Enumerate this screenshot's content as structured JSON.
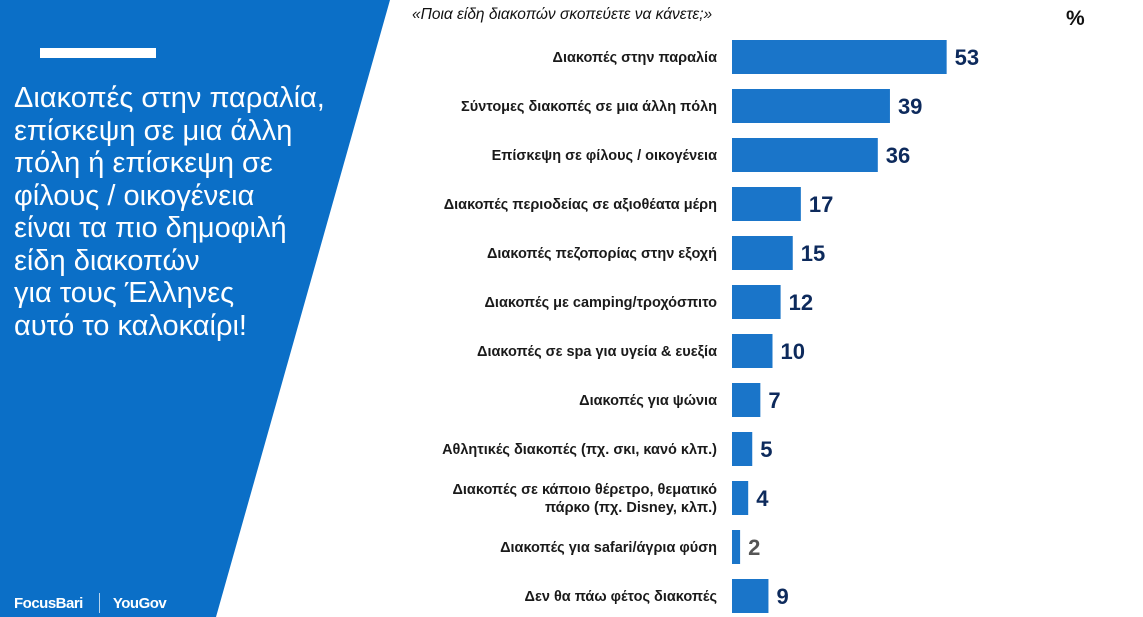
{
  "colors": {
    "panel": "#0b6fc7",
    "bar": "#1a75c9",
    "value_text": "#0d2a5c",
    "small_value_text": "#555555"
  },
  "headline": "Διακοπές στην παραλία,\nεπίσκεψη σε μια άλλη\nπόλη ή επίσκεψη σε\nφίλους / οικογένεια\nείναι τα πιο δημοφιλή\nείδη διακοπών\nγια τους Έλληνες\nαυτό το καλοκαίρι!",
  "logos": {
    "focusbari": "FocusBari",
    "yougov": "YouGov"
  },
  "chart_data": {
    "type": "bar",
    "orientation": "horizontal",
    "title": "«Ποια είδη διακοπών σκοπεύετε να κάνετε;»",
    "unit": "%",
    "categories": [
      "Διακοπές στην παραλία",
      "Σύντομες διακοπές σε μια άλλη πόλη",
      "Επίσκεψη σε φίλους / οικογένεια",
      "Διακοπές περιοδείας σε αξιοθέατα μέρη",
      "Διακοπές πεζοπορίας στην εξοχή",
      "Διακοπές με camping/τροχόσπιτο",
      "Διακοπές σε spa για υγεία & ευεξία",
      "Διακοπές για ψώνια",
      "Αθλητικές διακοπές (πχ. σκι, κανό κλπ.)",
      "Διακοπές σε κάποιο θέρετρο, θεματικό\nπάρκο (πχ. Disney, κλπ.)",
      "Διακοπές για safari/άγρια φύση",
      "Δεν θα πάω φέτος διακοπές"
    ],
    "values": [
      53,
      39,
      36,
      17,
      15,
      12,
      10,
      7,
      5,
      4,
      2,
      9
    ],
    "data_labels": true,
    "grid": false
  }
}
